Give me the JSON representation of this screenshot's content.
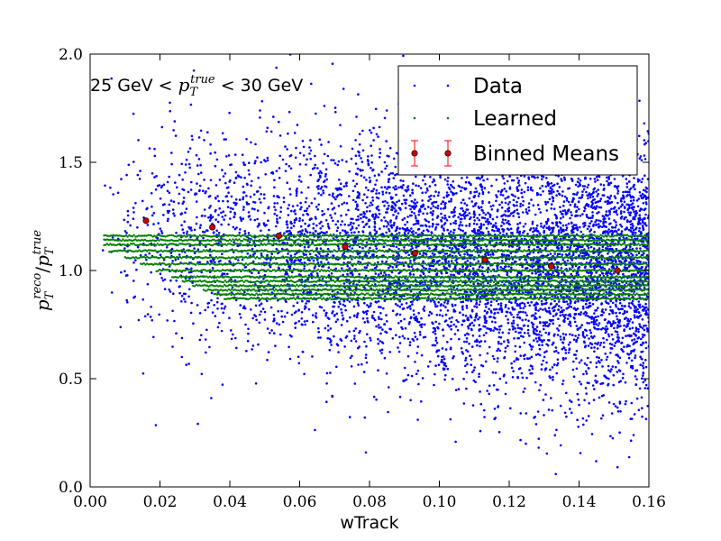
{
  "chart_data": {
    "type": "scatter",
    "xlabel": "wTrack",
    "ylabel": {
      "p": "p",
      "sub": "T",
      "sup_reco": "reco",
      "slash": "/",
      "sup_true": "true"
    },
    "xlim": [
      0.0,
      0.16
    ],
    "ylim": [
      0.0,
      2.0
    ],
    "x_ticks": [
      0.0,
      0.02,
      0.04,
      0.06,
      0.08,
      0.1,
      0.12,
      0.14,
      0.16
    ],
    "x_tick_labels": [
      "0.00",
      "0.02",
      "0.04",
      "0.06",
      "0.08",
      "0.10",
      "0.12",
      "0.14",
      "0.16"
    ],
    "y_ticks": [
      0.0,
      0.5,
      1.0,
      1.5,
      2.0
    ],
    "y_tick_labels": [
      "0.0",
      "0.5",
      "1.0",
      "1.5",
      "2.0"
    ],
    "grid": false,
    "legend_position": "top-right",
    "annotation": {
      "left": "25 GeV <",
      "p": "p",
      "sub": "T",
      "sup": "true",
      "right": "< 30 GeV"
    },
    "series": [
      {
        "name": "Data",
        "kind": "scatter",
        "color": "#0000ff",
        "x_range": [
          0.002,
          0.16
        ],
        "y_center_at_low_x": 1.22,
        "y_center_at_high_x": 1.0,
        "y_spread_at_low_x": 0.25,
        "y_spread_at_high_x": 0.3,
        "density_increasing_with_x": true
      },
      {
        "name": "Learned",
        "kind": "scatter",
        "color": "#008000",
        "x_range": [
          0.004,
          0.16
        ],
        "levels": [
          0.87,
          0.89,
          0.91,
          0.93,
          0.95,
          0.97,
          1.0,
          1.03,
          1.06,
          1.09,
          1.12,
          1.14,
          1.16
        ]
      },
      {
        "name": "Binned Means",
        "kind": "errorbar",
        "color": "#ff0000",
        "x": [
          0.016,
          0.035,
          0.054,
          0.073,
          0.093,
          0.113,
          0.132,
          0.151
        ],
        "y": [
          1.23,
          1.2,
          1.16,
          1.11,
          1.08,
          1.05,
          1.02,
          1.0
        ],
        "yerr": [
          0.005,
          0.004,
          0.003,
          0.003,
          0.003,
          0.003,
          0.003,
          0.003
        ]
      }
    ]
  }
}
